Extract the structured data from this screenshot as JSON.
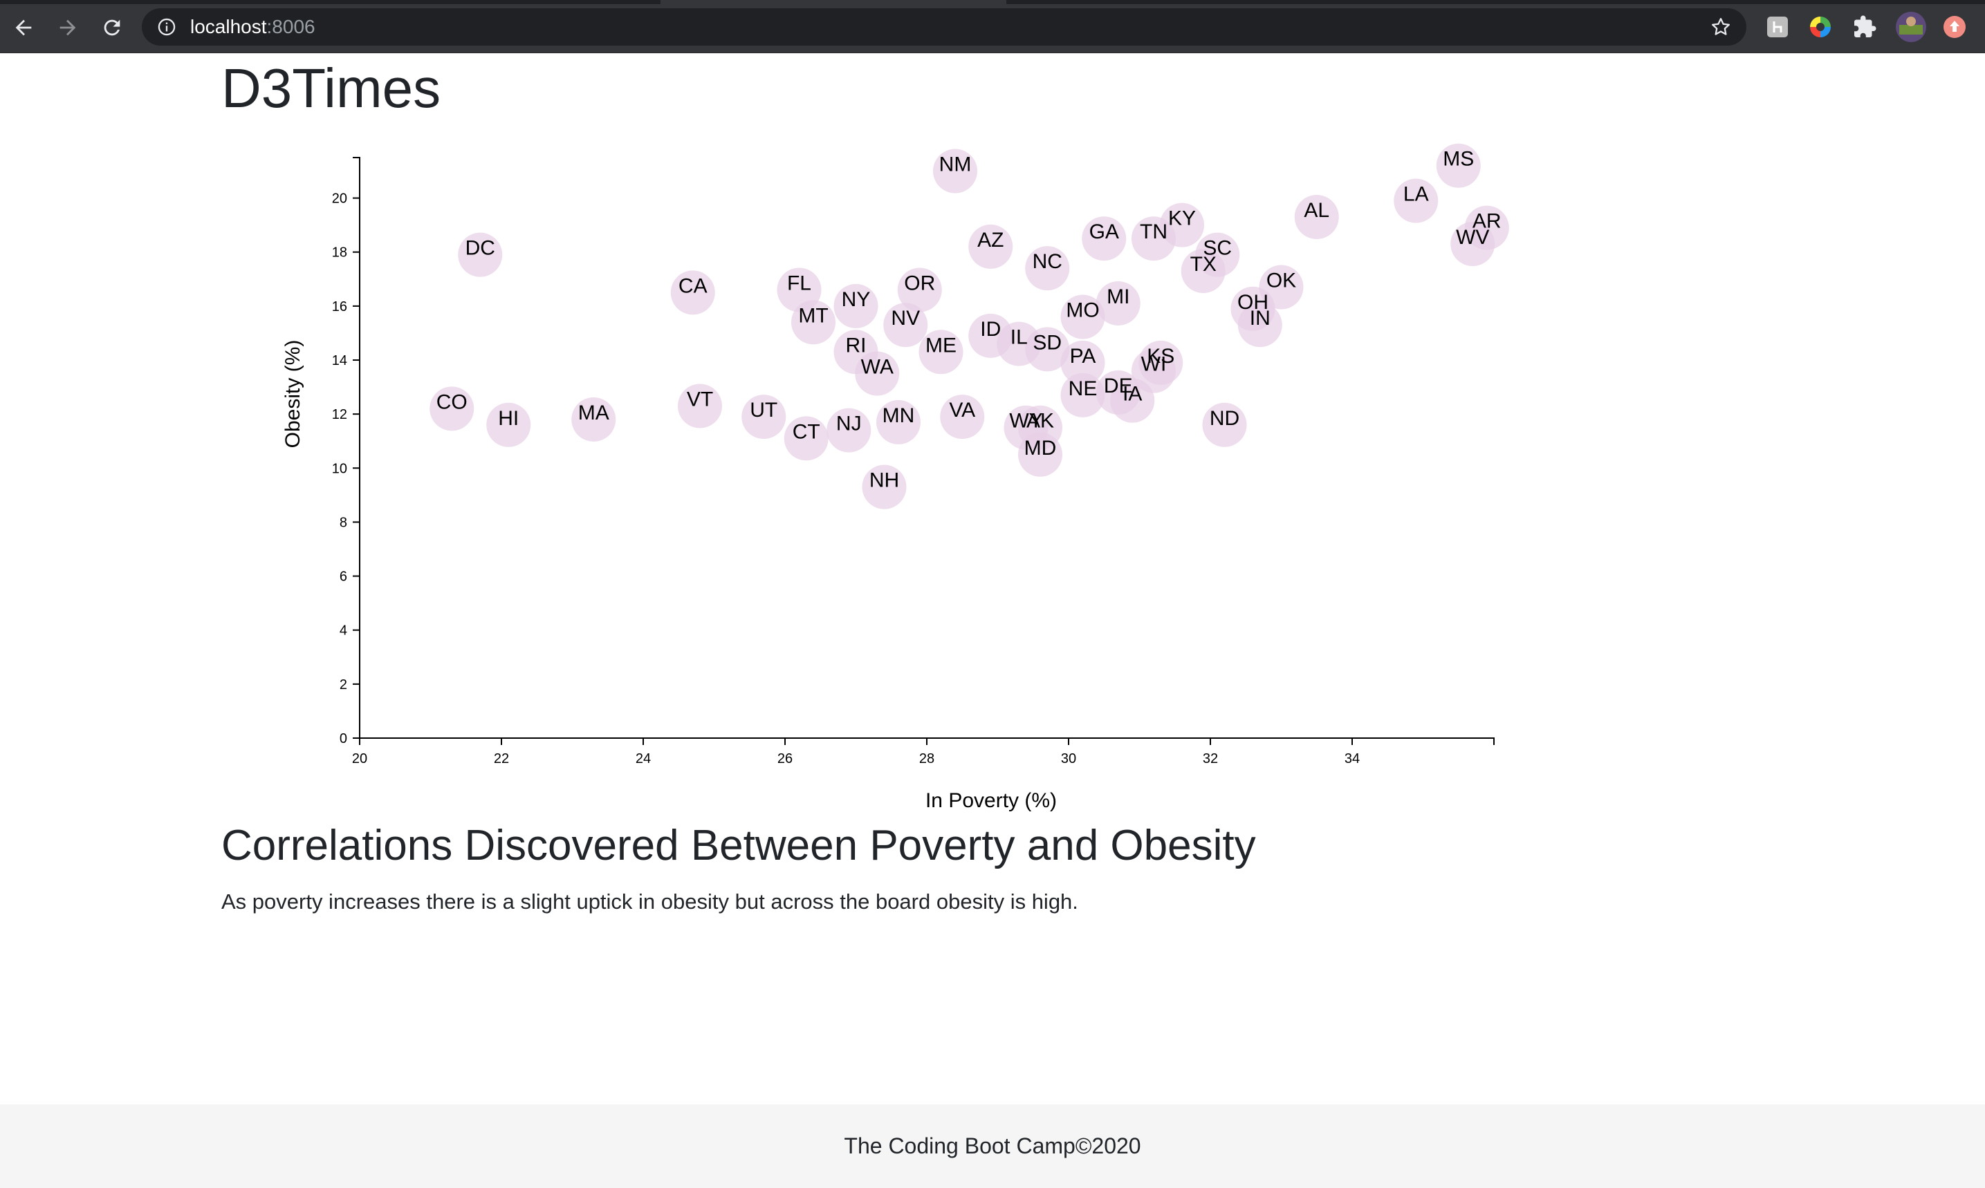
{
  "browser": {
    "url_host": "localhost",
    "url_port": ":8006"
  },
  "page": {
    "title": "D3Times",
    "section_title": "Correlations Discovered Between Poverty and Obesity",
    "section_text": "As poverty increases there is a slight uptick in obesity but across the board obesity is high.",
    "footer": "The Coding Boot Camp©2020"
  },
  "chart_data": {
    "type": "scatter",
    "xlabel": "In Poverty (%)",
    "ylabel": "Obesity (%)",
    "xlim": [
      20,
      36
    ],
    "ylim": [
      0,
      21.5
    ],
    "xticks": [
      20,
      22,
      24,
      26,
      28,
      30,
      32,
      34
    ],
    "yticks": [
      0,
      2,
      4,
      6,
      8,
      10,
      12,
      14,
      16,
      18,
      20
    ],
    "marker_color": "#e7cfe6",
    "points": [
      {
        "label": "NM",
        "x": 28.4,
        "y": 21.0
      },
      {
        "label": "MS",
        "x": 35.5,
        "y": 21.2
      },
      {
        "label": "LA",
        "x": 34.9,
        "y": 19.9
      },
      {
        "label": "AR",
        "x": 35.9,
        "y": 18.9
      },
      {
        "label": "WV",
        "x": 35.7,
        "y": 18.3
      },
      {
        "label": "AL",
        "x": 33.5,
        "y": 19.3
      },
      {
        "label": "KY",
        "x": 31.6,
        "y": 19.0
      },
      {
        "label": "TN",
        "x": 31.2,
        "y": 18.5
      },
      {
        "label": "SC",
        "x": 32.1,
        "y": 17.9
      },
      {
        "label": "TX",
        "x": 31.9,
        "y": 17.3
      },
      {
        "label": "GA",
        "x": 30.5,
        "y": 18.5
      },
      {
        "label": "AZ",
        "x": 28.9,
        "y": 18.2
      },
      {
        "label": "NC",
        "x": 29.7,
        "y": 17.4
      },
      {
        "label": "OK",
        "x": 33.0,
        "y": 16.7
      },
      {
        "label": "OH",
        "x": 32.6,
        "y": 15.9
      },
      {
        "label": "IN",
        "x": 32.7,
        "y": 15.3
      },
      {
        "label": "MI",
        "x": 30.7,
        "y": 16.1
      },
      {
        "label": "MO",
        "x": 30.2,
        "y": 15.6
      },
      {
        "label": "DC",
        "x": 21.7,
        "y": 17.9
      },
      {
        "label": "CA",
        "x": 24.7,
        "y": 16.5
      },
      {
        "label": "FL",
        "x": 26.2,
        "y": 16.6
      },
      {
        "label": "OR",
        "x": 27.9,
        "y": 16.6
      },
      {
        "label": "NY",
        "x": 27.0,
        "y": 16.0
      },
      {
        "label": "MT",
        "x": 26.4,
        "y": 15.4
      },
      {
        "label": "NV",
        "x": 27.7,
        "y": 15.3
      },
      {
        "label": "ID",
        "x": 28.9,
        "y": 14.9
      },
      {
        "label": "IL",
        "x": 29.3,
        "y": 14.6
      },
      {
        "label": "SD",
        "x": 29.7,
        "y": 14.4
      },
      {
        "label": "RI",
        "x": 27.0,
        "y": 14.3
      },
      {
        "label": "ME",
        "x": 28.2,
        "y": 14.3
      },
      {
        "label": "PA",
        "x": 30.2,
        "y": 13.9
      },
      {
        "label": "KS",
        "x": 31.3,
        "y": 13.9
      },
      {
        "label": "WI",
        "x": 31.2,
        "y": 13.6
      },
      {
        "label": "WA",
        "x": 27.3,
        "y": 13.5
      },
      {
        "label": "NE",
        "x": 30.2,
        "y": 12.7
      },
      {
        "label": "DE",
        "x": 30.7,
        "y": 12.8
      },
      {
        "label": "IA",
        "x": 30.9,
        "y": 12.5
      },
      {
        "label": "CO",
        "x": 21.3,
        "y": 12.2
      },
      {
        "label": "HI",
        "x": 22.1,
        "y": 11.6
      },
      {
        "label": "MA",
        "x": 23.3,
        "y": 11.8
      },
      {
        "label": "VT",
        "x": 24.8,
        "y": 12.3
      },
      {
        "label": "UT",
        "x": 25.7,
        "y": 11.9
      },
      {
        "label": "CT",
        "x": 26.3,
        "y": 11.1
      },
      {
        "label": "NJ",
        "x": 26.9,
        "y": 11.4
      },
      {
        "label": "MN",
        "x": 27.6,
        "y": 11.7
      },
      {
        "label": "VA",
        "x": 28.5,
        "y": 11.9
      },
      {
        "label": "WY",
        "x": 29.4,
        "y": 11.5
      },
      {
        "label": "AK",
        "x": 29.6,
        "y": 11.5
      },
      {
        "label": "MD",
        "x": 29.6,
        "y": 10.5
      },
      {
        "label": "ND",
        "x": 32.2,
        "y": 11.6
      },
      {
        "label": "NH",
        "x": 27.4,
        "y": 9.3
      }
    ]
  }
}
